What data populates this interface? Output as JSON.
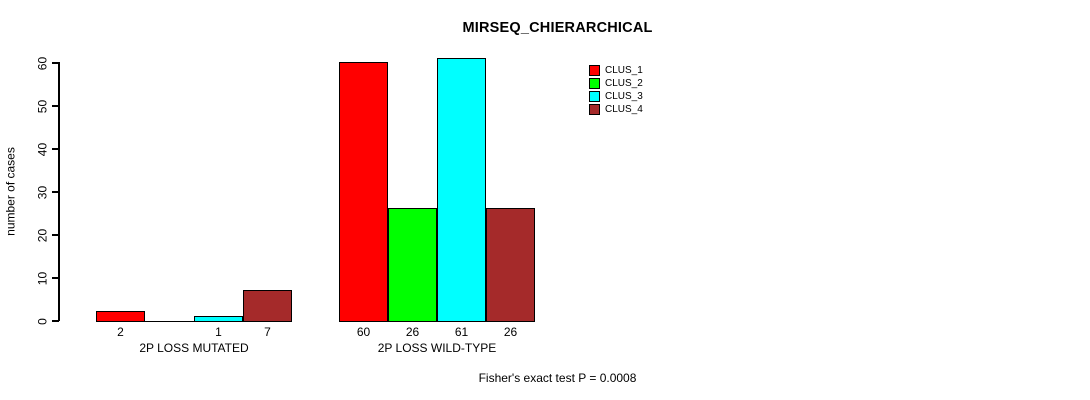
{
  "chart_data": {
    "type": "bar",
    "title": "MIRSEQ_CHIERARCHICAL",
    "ylabel": "number of cases",
    "xlabel": "",
    "footer_annotation": "Fisher's exact test P = 0.0008",
    "ylim": [
      0,
      60
    ],
    "yticks": [
      0,
      10,
      20,
      30,
      40,
      50,
      60
    ],
    "grid": false,
    "legend_position": "top-right",
    "bar_border_color": "#000000",
    "series": [
      {
        "name": "CLUS_1",
        "color": "#FF0000"
      },
      {
        "name": "CLUS_2",
        "color": "#00FF00"
      },
      {
        "name": "CLUS_3",
        "color": "#00FFFF"
      },
      {
        "name": "CLUS_4",
        "color": "#A52A2A"
      }
    ],
    "groups": [
      {
        "label": "2P LOSS MUTATED",
        "values": [
          2,
          0,
          1,
          7
        ],
        "bar_labels": [
          "2",
          "",
          "1",
          "7"
        ]
      },
      {
        "label": "2P LOSS WILD-TYPE",
        "values": [
          60,
          26,
          61,
          26
        ],
        "bar_labels": [
          "60",
          "26",
          "61",
          "26"
        ]
      }
    ]
  }
}
